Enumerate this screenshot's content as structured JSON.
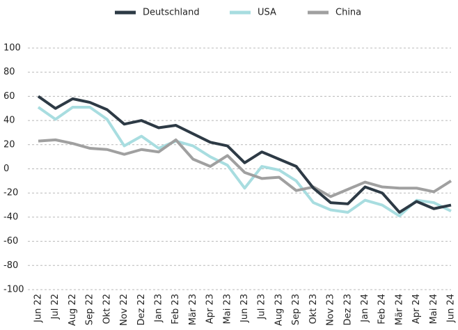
{
  "chart_data": {
    "type": "line",
    "categories": [
      "Jun 22",
      "Jul 22",
      "Aug 22",
      "Sep 22",
      "Okt 22",
      "Nov 22",
      "Dez 22",
      "Jan 23",
      "Feb 23",
      "Mär 23",
      "Apr 23",
      "Mai 23",
      "Jun 23",
      "Jul 23",
      "Aug 23",
      "Sep 23",
      "Okt 23",
      "Nov 23",
      "Dez 23",
      "Jan 24",
      "Feb 24",
      "Mär 24",
      "Apr 24",
      "Mai 24",
      "Jun 24"
    ],
    "series": [
      {
        "name": "Deutschland",
        "color": "#2d3a45",
        "values": [
          60,
          50,
          58,
          55,
          49,
          37,
          40,
          34,
          36,
          29,
          22,
          19,
          5,
          14,
          8,
          2,
          -16,
          -28,
          -29,
          -15,
          -20,
          -36,
          -27,
          -33,
          -30
        ]
      },
      {
        "name": "USA",
        "color": "#a8dde0",
        "values": [
          51,
          41,
          51,
          51,
          41,
          19,
          27,
          17,
          23,
          19,
          10,
          3,
          -16,
          2,
          -1,
          -10,
          -28,
          -34,
          -36,
          -26,
          -30,
          -39,
          -26,
          -28,
          -35
        ]
      },
      {
        "name": "China",
        "color": "#a0a0a0",
        "values": [
          23,
          24,
          21,
          17,
          16,
          12,
          16,
          14,
          24,
          8,
          2,
          11,
          -3,
          -8,
          -7,
          -18,
          -15,
          -23,
          -17,
          -11,
          -15,
          -16,
          -16,
          -19,
          -10
        ]
      }
    ],
    "ylim": [
      -100,
      100
    ],
    "yticks": [
      -100,
      -80,
      -60,
      -40,
      -20,
      0,
      20,
      40,
      60,
      80,
      100
    ],
    "grid": true,
    "legend": "top"
  }
}
